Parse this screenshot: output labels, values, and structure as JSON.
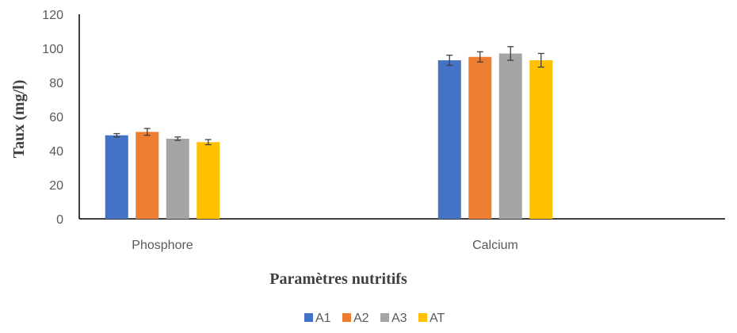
{
  "chart_data": {
    "type": "bar",
    "xlabel": "Paramètres nutritifs",
    "ylabel": "Taux (mg/l)",
    "ylim": [
      0,
      120
    ],
    "yticks": [
      0,
      20,
      40,
      60,
      80,
      100,
      120
    ],
    "categories": [
      "Phosphore",
      "Calcium"
    ],
    "series": [
      {
        "name": "A1",
        "color": "#4472C4",
        "values": [
          49,
          93
        ],
        "errors": [
          1,
          3
        ]
      },
      {
        "name": "A2",
        "color": "#ED7D31",
        "values": [
          51,
          95
        ],
        "errors": [
          2,
          3
        ]
      },
      {
        "name": "A3",
        "color": "#A5A5A5",
        "values": [
          47,
          97
        ],
        "errors": [
          1,
          4
        ]
      },
      {
        "name": "AT",
        "color": "#FFC000",
        "values": [
          45,
          93
        ],
        "errors": [
          1.5,
          4
        ]
      }
    ],
    "legend_position": "bottom",
    "grid": false
  }
}
